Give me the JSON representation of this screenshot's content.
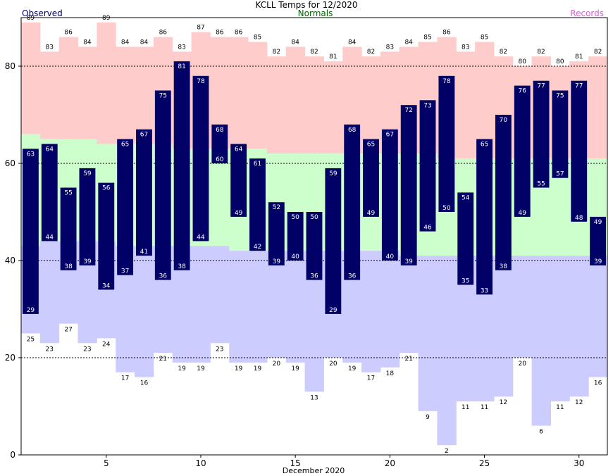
{
  "chart_data": {
    "type": "bar",
    "title": "KCLL Temps for 12/2020",
    "xlabel": "December 2020",
    "ylabel": "",
    "ylim": [
      0,
      90
    ],
    "xlim": [
      0.5,
      31.5
    ],
    "yticks": [
      0,
      20,
      40,
      60,
      80
    ],
    "xticks": [
      5,
      10,
      15,
      20,
      25,
      30
    ],
    "grid": "dashed horizontal at 20, 40, 60, 80",
    "legend": [
      "Observed",
      "Normals",
      "Records"
    ],
    "colors": {
      "record_band": "#ffcccc",
      "normal_band": "#ccffcc",
      "low_band": "#ccccff",
      "observed_bar": "#000066",
      "normals_text": "#006600",
      "observed_text": "#000066",
      "records_text": "#cc66cc"
    },
    "days": [
      1,
      2,
      3,
      4,
      5,
      6,
      7,
      8,
      9,
      10,
      11,
      12,
      13,
      14,
      15,
      16,
      17,
      18,
      19,
      20,
      21,
      22,
      23,
      24,
      25,
      26,
      27,
      28,
      29,
      30,
      31
    ],
    "record_high": [
      89,
      83,
      86,
      84,
      89,
      84,
      84,
      86,
      83,
      87,
      86,
      86,
      85,
      82,
      84,
      82,
      81,
      84,
      82,
      83,
      84,
      85,
      86,
      83,
      85,
      82,
      80,
      82,
      80,
      81,
      82
    ],
    "normal_high": [
      66,
      65,
      65,
      65,
      64,
      64,
      64,
      64,
      63,
      63,
      63,
      63,
      63,
      62,
      62,
      62,
      62,
      62,
      62,
      62,
      62,
      62,
      61,
      61,
      61,
      61,
      61,
      61,
      61,
      61,
      61
    ],
    "normal_low": [
      43,
      44,
      44,
      44,
      44,
      43,
      43,
      43,
      43,
      43,
      43,
      42,
      42,
      42,
      42,
      42,
      42,
      42,
      42,
      42,
      41,
      41,
      41,
      41,
      41,
      41,
      41,
      41,
      41,
      41,
      41
    ],
    "record_low": [
      25,
      23,
      27,
      23,
      24,
      17,
      16,
      21,
      19,
      19,
      23,
      19,
      19,
      20,
      19,
      13,
      20,
      19,
      17,
      18,
      21,
      9,
      2,
      11,
      11,
      12,
      20,
      6,
      11,
      12,
      16
    ],
    "observed_high": [
      63,
      64,
      55,
      59,
      56,
      65,
      67,
      75,
      81,
      78,
      68,
      64,
      61,
      52,
      50,
      50,
      59,
      68,
      65,
      67,
      72,
      73,
      78,
      54,
      65,
      70,
      76,
      77,
      75,
      77,
      49
    ],
    "observed_low": [
      29,
      44,
      38,
      39,
      34,
      37,
      41,
      36,
      38,
      44,
      60,
      49,
      42,
      39,
      40,
      36,
      29,
      36,
      49,
      40,
      39,
      46,
      50,
      35,
      33,
      38,
      49,
      55,
      57,
      48,
      39
    ],
    "observed_low_labels": [
      "29",
      "44",
      "38",
      "39",
      "34",
      "37",
      "41",
      "36",
      "38",
      "44",
      "60",
      "49",
      "42",
      "39",
      "40",
      "36",
      "29",
      "36",
      "49",
      "40",
      "39",
      "46",
      "50",
      "35",
      "33",
      "38",
      "49",
      "55",
      "57",
      "48",
      "39"
    ]
  }
}
